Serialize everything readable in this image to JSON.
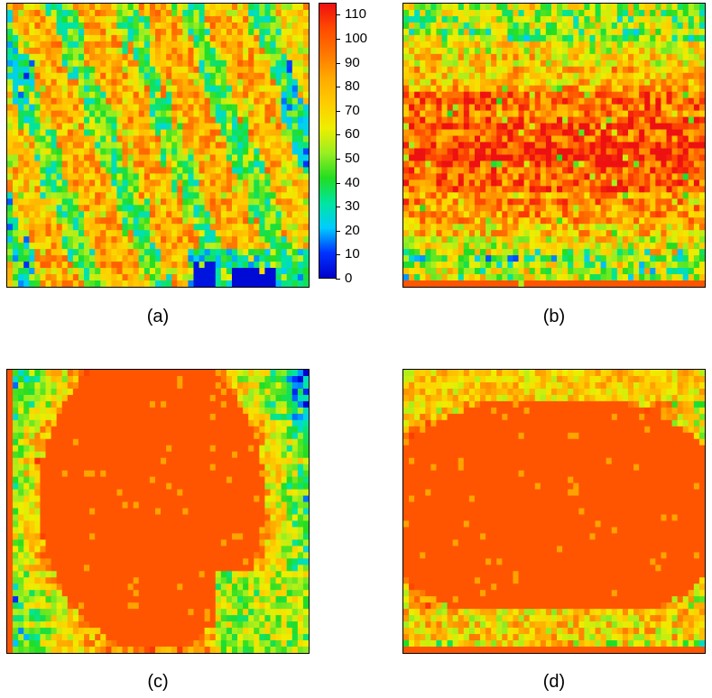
{
  "chart_data": [
    {
      "type": "heatmap",
      "caption": "(a)",
      "colorbar": {
        "min": 0,
        "max": 115,
        "ticks": [
          0,
          10,
          20,
          30,
          40,
          50,
          60,
          70,
          80,
          90,
          100,
          110
        ]
      },
      "grid": {
        "rows": 45,
        "cols": 55
      },
      "pattern": "diagonal-streaks"
    },
    {
      "type": "heatmap",
      "caption": "(b)",
      "grid": {
        "rows": 45,
        "cols": 55
      },
      "pattern": "horizontal-band"
    },
    {
      "type": "heatmap",
      "caption": "(c)",
      "grid": {
        "rows": 45,
        "cols": 55
      },
      "pattern": "central-blob-horizontal-streaks"
    },
    {
      "type": "heatmap",
      "caption": "(d)",
      "grid": {
        "rows": 45,
        "cols": 55
      },
      "pattern": "central-blob-vertical-streaks"
    }
  ],
  "colormap": [
    "#0000cc",
    "#0033ff",
    "#00ccff",
    "#00e5a0",
    "#22dd22",
    "#99ee22",
    "#eeee00",
    "#ffcc00",
    "#ffaa00",
    "#ff7700",
    "#ff4a00",
    "#ee1111"
  ]
}
